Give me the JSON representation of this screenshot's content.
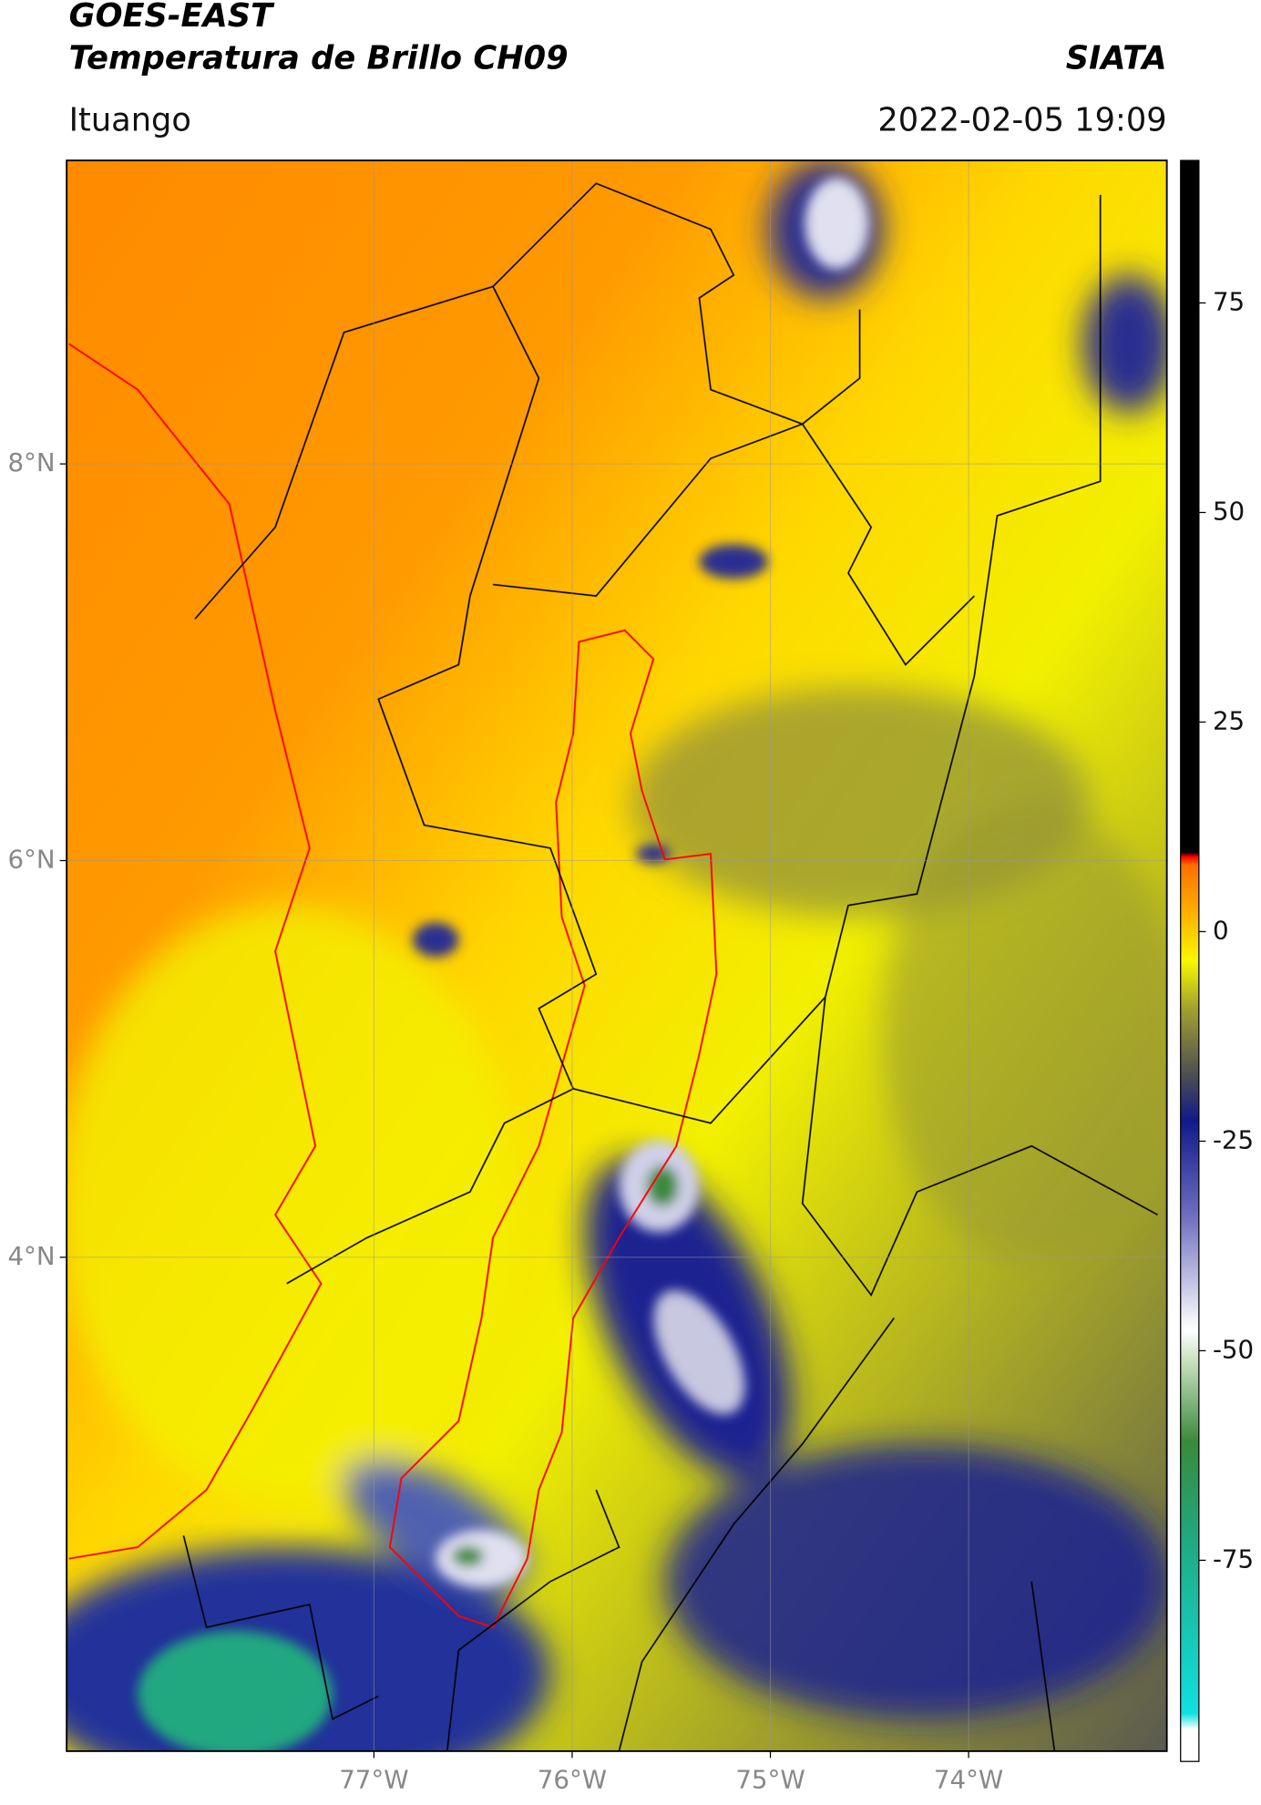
{
  "header": {
    "title_line1": "GOES-EAST",
    "title_line2": "Temperatura de Brillo CH09",
    "org": "SIATA",
    "region": "Ituango",
    "datetime": "2022-02-05 19:09"
  },
  "map": {
    "xlim": [
      -78.55,
      -73.0
    ],
    "ylim": [
      1.51,
      9.53
    ],
    "xticks": [
      {
        "value": -77,
        "label": "77°W"
      },
      {
        "value": -76,
        "label": "76°W"
      },
      {
        "value": -75,
        "label": "75°W"
      },
      {
        "value": -74,
        "label": "74°W"
      }
    ],
    "yticks": [
      {
        "value": 8,
        "label": "8°N"
      },
      {
        "value": 6,
        "label": "6°N"
      },
      {
        "value": 4,
        "label": "4°N"
      }
    ],
    "grid": true
  },
  "colorbar": {
    "lim": [
      -99,
      92
    ],
    "ticks": [
      75,
      50,
      25,
      0,
      -25,
      -50,
      -75
    ]
  }
}
